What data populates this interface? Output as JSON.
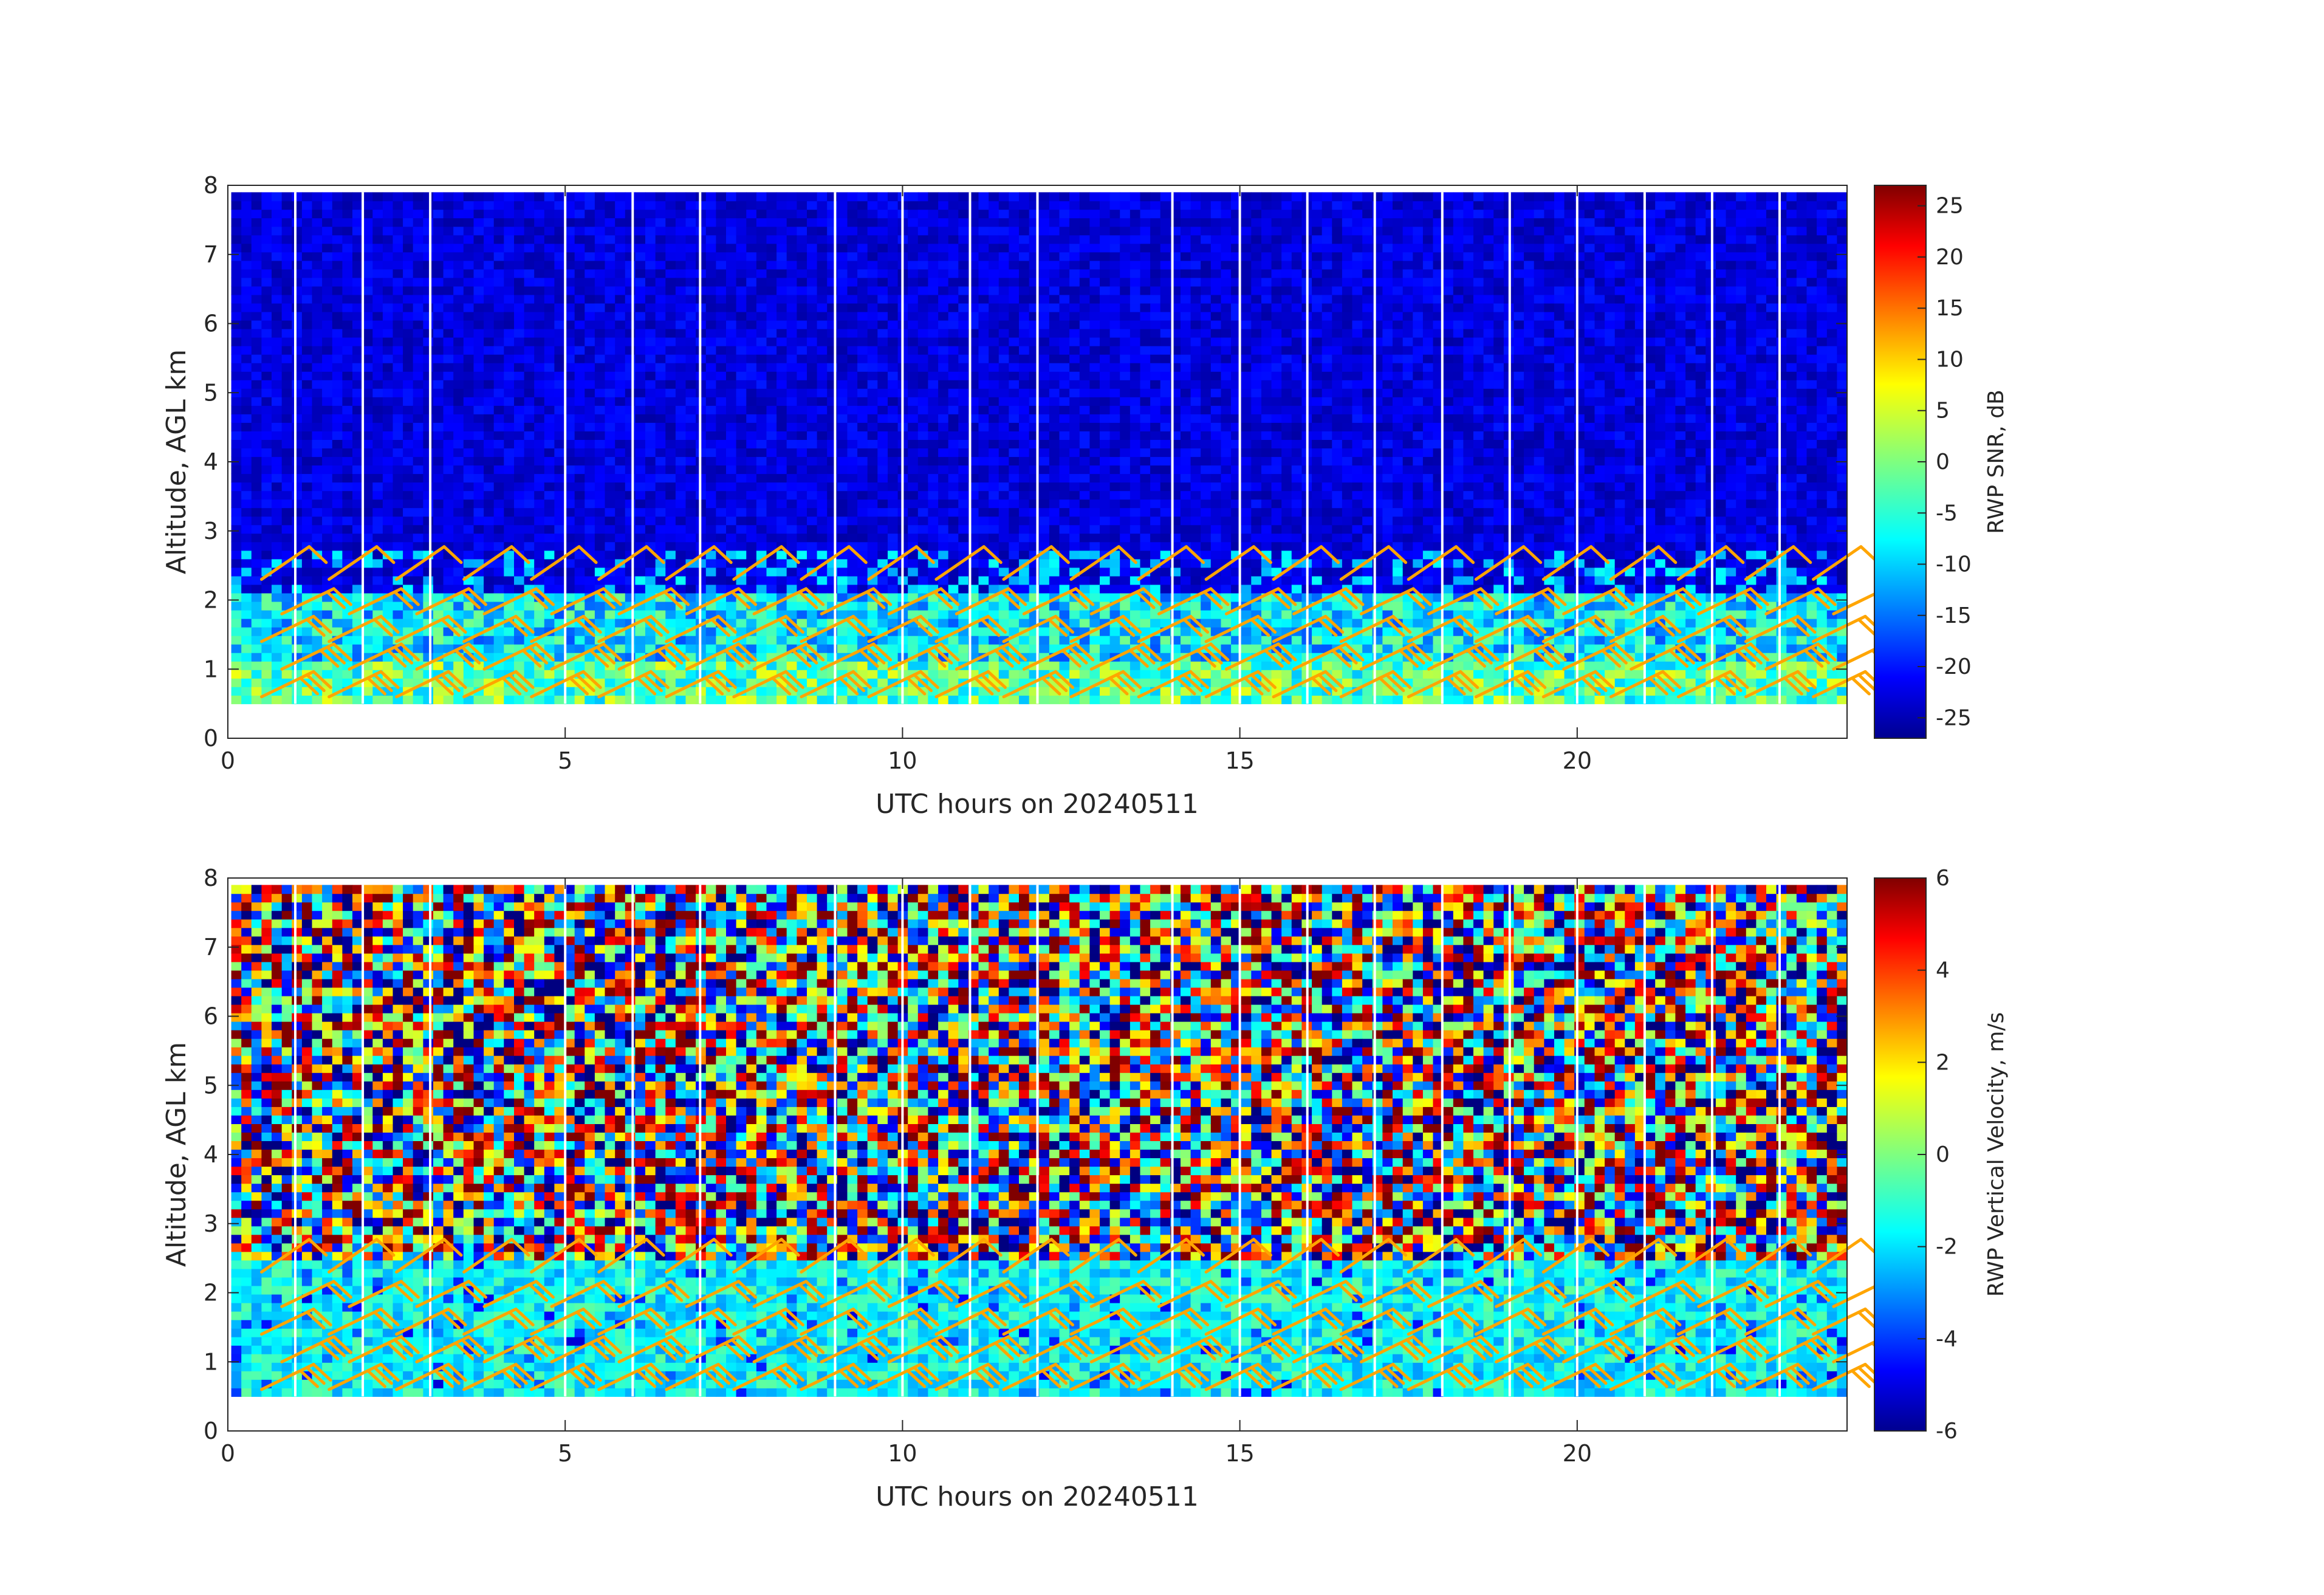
{
  "chart_data": [
    {
      "type": "heatmap",
      "xlabel": "UTC hours on 20240511",
      "ylabel": "Altitude, AGL km",
      "xlim": [
        0,
        24
      ],
      "ylim": [
        0,
        8
      ],
      "xticks": [
        "0",
        "5",
        "10",
        "15",
        "20"
      ],
      "yticks": [
        "0",
        "1",
        "2",
        "3",
        "4",
        "5",
        "6",
        "7",
        "8"
      ],
      "colorbar_label": "RWP SNR, dB",
      "colorbar_ticks": [
        "-25",
        "-20",
        "-15",
        "-10",
        "-5",
        "0",
        "5",
        "10",
        "15",
        "20",
        "25"
      ],
      "clim": [
        -27,
        27
      ],
      "colormap": "jet",
      "data_altitude_range_km": [
        0.5,
        7.9
      ],
      "time_gaps_hours": [
        1,
        2,
        3,
        5,
        6,
        7,
        9,
        10,
        11,
        12,
        14,
        15,
        16,
        17,
        18,
        19,
        20,
        21,
        22,
        23
      ],
      "background_value": -22,
      "boundary_layer_top_km": 2.0,
      "boundary_layer_value": -8,
      "overlay": "wind barbs (orange)",
      "overlay_color": "#ffa500"
    },
    {
      "type": "heatmap",
      "xlabel": "UTC hours on 20240511",
      "ylabel": "Altitude, AGL km",
      "xlim": [
        0,
        24
      ],
      "ylim": [
        0,
        8
      ],
      "xticks": [
        "0",
        "5",
        "10",
        "15",
        "20"
      ],
      "yticks": [
        "0",
        "1",
        "2",
        "3",
        "4",
        "5",
        "6",
        "7",
        "8"
      ],
      "colorbar_label": "RWP Vertical Velocity, m/s",
      "colorbar_ticks": [
        "-6",
        "-4",
        "-2",
        "0",
        "2",
        "4",
        "6"
      ],
      "clim": [
        -6,
        6
      ],
      "colormap": "jet",
      "data_altitude_range_km": [
        0.5,
        7.9
      ],
      "time_gaps_hours": [
        1,
        2,
        3,
        5,
        6,
        7,
        9,
        10,
        11,
        12,
        14,
        15,
        16,
        17,
        18,
        19,
        20,
        21,
        22,
        23
      ],
      "boundary_layer_top_km": 2.0,
      "boundary_layer_value": -1.5,
      "overlay": "wind barbs (orange)",
      "overlay_color": "#ffa500"
    }
  ],
  "colors": {
    "axis": "#262626",
    "background": "#ffffff",
    "barbs": "#ffa500"
  }
}
